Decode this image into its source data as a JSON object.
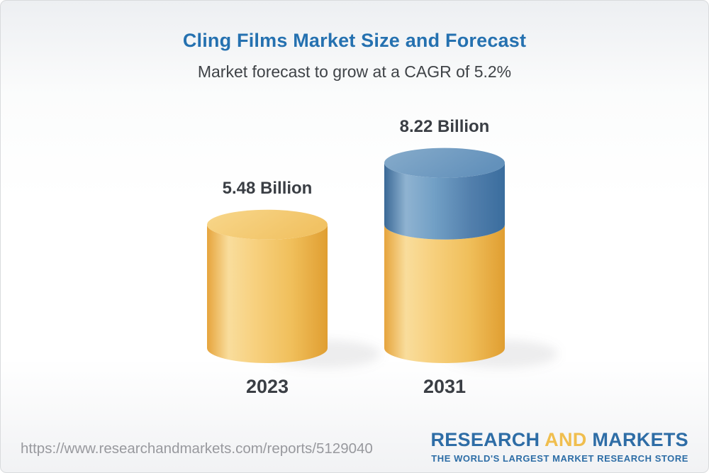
{
  "header": {
    "title": "Cling Films Market Size and Forecast",
    "subtitle": "Market forecast to grow at a CAGR of 5.2%"
  },
  "chart_data": {
    "type": "bar",
    "style": "3d-cylinder",
    "title": "Cling Films Market Size and Forecast",
    "subtitle": "Market forecast to grow at a CAGR of 5.2%",
    "cagr_percent": 5.2,
    "categories": [
      "2023",
      "2031"
    ],
    "values": [
      5.48,
      8.22
    ],
    "value_labels": [
      "5.48 Billion",
      "8.22 Billion"
    ],
    "base_segment_value": 5.48,
    "growth_segment_value": 2.74,
    "ylim": [
      0,
      9
    ],
    "grid": false,
    "legend": false,
    "colors": {
      "base_segment": "#F3C768",
      "growth_segment": "#5587B5",
      "label_text": "#3A3E44"
    }
  },
  "footer": {
    "url": "https://www.researchandmarkets.com/reports/5129040",
    "logo": {
      "word1": "RESEARCH",
      "word2": "AND",
      "word3": "MARKETS",
      "tagline": "THE WORLD'S LARGEST MARKET RESEARCH STORE",
      "blue": "#2E6DA6",
      "gold": "#F0BE4E"
    }
  },
  "theme": {
    "title_color": "#2571B0",
    "subtitle_color": "#3F4347",
    "url_color": "#98999E",
    "background_top": "#EDEFF2",
    "background_bottom": "#F1F2F4",
    "border_color": "#D9DBDD"
  }
}
